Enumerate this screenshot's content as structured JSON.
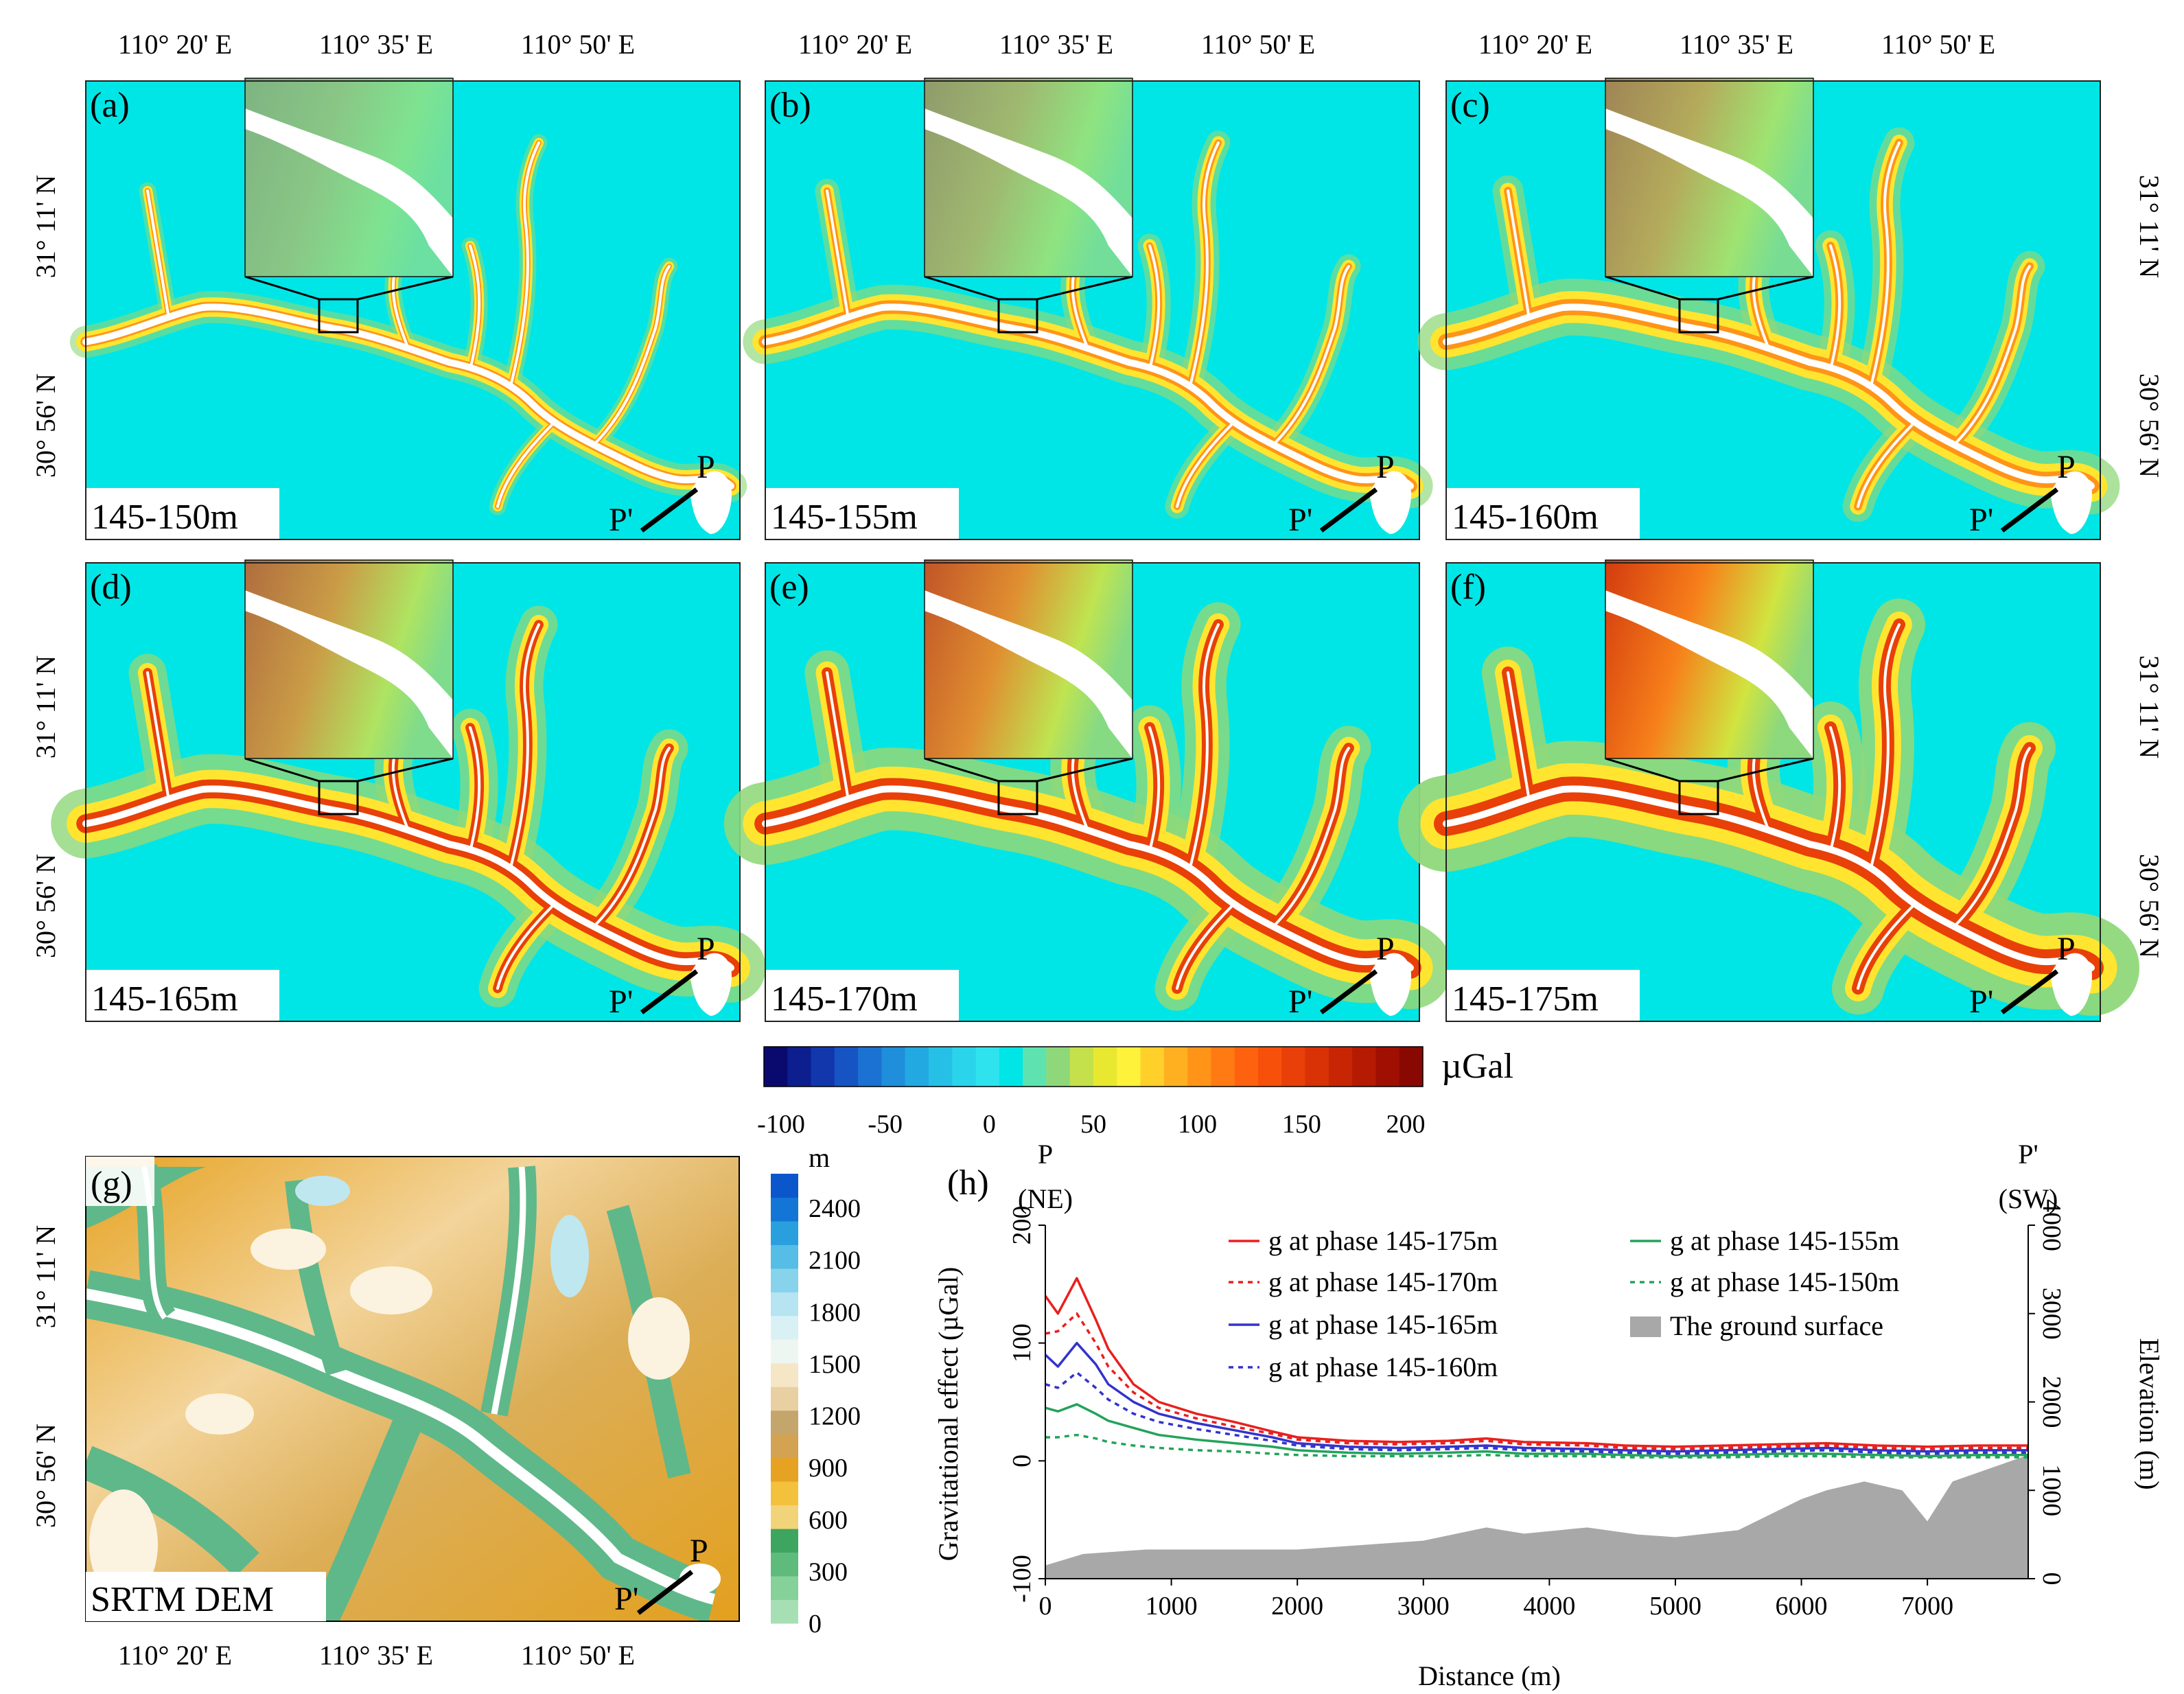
{
  "figure_text": {
    "lon_labels": [
      "110° 20' E",
      "110° 35' E",
      "110° 50' E"
    ],
    "lat_labels": [
      "31° 11' N",
      "30° 56' N"
    ],
    "point_P": "P",
    "point_P_prime": "P'"
  },
  "panels": [
    {
      "letter": "(a)",
      "label": "145-150m",
      "level": 0.15
    },
    {
      "letter": "(b)",
      "label": "145-155m",
      "level": 0.32
    },
    {
      "letter": "(c)",
      "label": "145-160m",
      "level": 0.48
    },
    {
      "letter": "(d)",
      "label": "145-165m",
      "level": 0.65
    },
    {
      "letter": "(e)",
      "label": "145-170m",
      "level": 0.82
    },
    {
      "letter": "(f)",
      "label": "145-175m",
      "level": 1.0
    }
  ],
  "colorbar_gravity": {
    "unit": "µGal",
    "ticks": [
      "-100",
      "-50",
      "0",
      "50",
      "100",
      "150",
      "200"
    ],
    "colors": [
      "#0a0a6e",
      "#0d1f8f",
      "#1237ad",
      "#1654c4",
      "#1b72d2",
      "#1f8fdc",
      "#22a9e2",
      "#26c0e6",
      "#2ad4ea",
      "#2fe3ee",
      "#00e6e6",
      "#5ee3b0",
      "#8fd87a",
      "#c4e04a",
      "#e8e830",
      "#fff23a",
      "#ffd02a",
      "#ffb020",
      "#ff9418",
      "#ff7a12",
      "#ff620e",
      "#f6500b",
      "#e84008",
      "#d83206",
      "#c82504",
      "#b51a03",
      "#a01002",
      "#8a0802"
    ]
  },
  "panel_g": {
    "letter": "(g)",
    "label": "SRTM DEM",
    "unit": "m",
    "ticks": [
      "0",
      "300",
      "600",
      "900",
      "1200",
      "1500",
      "1800",
      "2100",
      "2400"
    ]
  },
  "chart_data": {
    "type": "line",
    "panel_letter": "(h)",
    "title": "",
    "xlabel": "Distance (m)",
    "ylabel": "Gravitational effect (µGal)",
    "y2label": "Elevation (m)",
    "xlim": [
      0,
      7800
    ],
    "ylim": [
      -100,
      200
    ],
    "y2lim": [
      0,
      4000
    ],
    "xticks": [
      "0",
      "1000",
      "2000",
      "3000",
      "4000",
      "5000",
      "6000",
      "7000"
    ],
    "yticks": [
      "-100",
      "0",
      "100",
      "200"
    ],
    "y2ticks": [
      "0",
      "1000",
      "2000",
      "3000",
      "4000"
    ],
    "end_labels": {
      "left": "P",
      "left_dir": "(NE)",
      "right": "P'",
      "right_dir": "(SW)"
    },
    "x": [
      0,
      100,
      250,
      400,
      500,
      700,
      900,
      1200,
      1500,
      1800,
      2000,
      2400,
      2800,
      3200,
      3500,
      3800,
      4300,
      4600,
      5000,
      5400,
      5800,
      6200,
      6600,
      7000,
      7400,
      7800
    ],
    "series": [
      {
        "name": "g at phase 145-175m",
        "color": "#e8201e",
        "dash": "solid",
        "values": [
          140,
          125,
          155,
          120,
          95,
          65,
          50,
          40,
          33,
          25,
          20,
          17,
          16,
          17,
          19,
          16,
          15,
          13,
          12,
          13,
          14,
          15,
          13,
          12,
          13,
          13
        ]
      },
      {
        "name": "g at phase 145-170m",
        "color": "#e8201e",
        "dash": "dotted",
        "values": [
          108,
          110,
          125,
          100,
          80,
          58,
          45,
          36,
          29,
          23,
          18,
          15,
          14,
          15,
          17,
          14,
          13,
          11,
          10,
          11,
          12,
          13,
          11,
          10,
          11,
          11
        ]
      },
      {
        "name": "g at phase 145-165m",
        "color": "#3333cc",
        "dash": "solid",
        "values": [
          90,
          80,
          100,
          82,
          65,
          50,
          40,
          32,
          26,
          20,
          15,
          12,
          11,
          12,
          13,
          11,
          10,
          9,
          8,
          9,
          10,
          11,
          9,
          8,
          9,
          9
        ]
      },
      {
        "name": "g at phase 145-160m",
        "color": "#3333cc",
        "dash": "dotted",
        "values": [
          65,
          62,
          75,
          62,
          52,
          40,
          33,
          27,
          22,
          17,
          13,
          10,
          9,
          10,
          11,
          9,
          8,
          7,
          6,
          7,
          8,
          9,
          7,
          6,
          7,
          7
        ]
      },
      {
        "name": "g at phase 145-155m",
        "color": "#23a35a",
        "dash": "solid",
        "values": [
          45,
          42,
          48,
          40,
          34,
          28,
          22,
          18,
          15,
          12,
          9,
          7,
          6,
          7,
          8,
          6,
          6,
          5,
          4,
          5,
          6,
          6,
          5,
          4,
          5,
          5
        ]
      },
      {
        "name": "g at phase 145-150m",
        "color": "#23a35a",
        "dash": "dotted",
        "values": [
          20,
          20,
          22,
          19,
          16,
          13,
          11,
          9,
          8,
          6,
          5,
          4,
          4,
          4,
          5,
          4,
          4,
          3,
          3,
          3,
          4,
          4,
          3,
          3,
          3,
          3
        ]
      }
    ],
    "ground_surface": {
      "name": "The ground surface",
      "color": "#a8a8a8",
      "x": [
        0,
        300,
        800,
        1500,
        2000,
        2500,
        3000,
        3500,
        3800,
        4300,
        4700,
        5000,
        5500,
        6000,
        6200,
        6500,
        6800,
        7000,
        7200,
        7400,
        7600,
        7800
      ],
      "elevation": [
        150,
        280,
        330,
        330,
        330,
        380,
        430,
        580,
        510,
        580,
        500,
        470,
        550,
        900,
        1000,
        1100,
        1000,
        650,
        1100,
        1200,
        1300,
        1400
      ]
    }
  }
}
